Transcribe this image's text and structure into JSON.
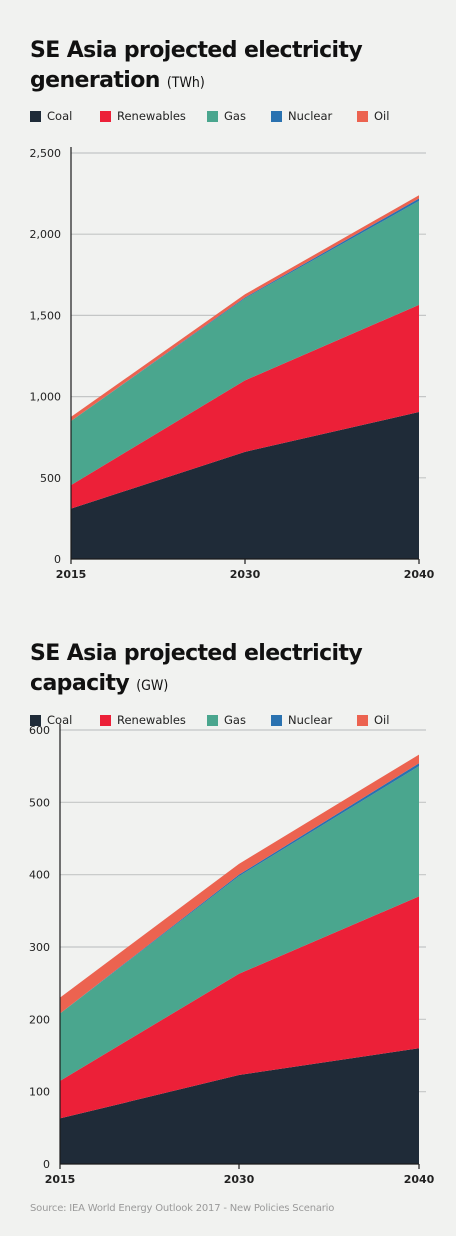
{
  "colors": {
    "coal": "#1f2b38",
    "renewables": "#ec2038",
    "gas": "#4aa68e",
    "nuclear": "#2a72b0",
    "oil": "#ec6350",
    "grid": "#c4c6c6",
    "axis": "#1b1b1b"
  },
  "source": "Source: IEA World Energy Outlook 2017 - New Policies Scenario",
  "chart_data": [
    {
      "type": "area",
      "stacked": true,
      "title": "SE Asia projected electricity generation",
      "unit": "(TWh)",
      "x": [
        "2015",
        "2030",
        "2040"
      ],
      "xlabel": "",
      "ylabel": "",
      "ylim": [
        0,
        2500
      ],
      "yticks": [
        "0",
        "500",
        "1,000",
        "1,500",
        "2,000",
        "2,500"
      ],
      "ytick_values": [
        0,
        500,
        1000,
        1500,
        2000,
        2500
      ],
      "grid": true,
      "legend": "top",
      "series": [
        {
          "name": "Coal",
          "color_key": "coal",
          "values": [
            310,
            660,
            905
          ]
        },
        {
          "name": "Renewables",
          "color_key": "renewables",
          "values": [
            145,
            440,
            660
          ]
        },
        {
          "name": "Gas",
          "color_key": "gas",
          "values": [
            395,
            505,
            640
          ]
        },
        {
          "name": "Nuclear",
          "color_key": "nuclear",
          "values": [
            0,
            5,
            15
          ]
        },
        {
          "name": "Oil",
          "color_key": "oil",
          "values": [
            25,
            20,
            20
          ]
        }
      ]
    },
    {
      "type": "area",
      "stacked": true,
      "title": "SE Asia projected electricity capacity",
      "unit": "(GW)",
      "x": [
        "2015",
        "2030",
        "2040"
      ],
      "xlabel": "",
      "ylabel": "",
      "ylim": [
        0,
        600
      ],
      "yticks": [
        "0",
        "100",
        "200",
        "300",
        "400",
        "500",
        "600"
      ],
      "ytick_values": [
        0,
        100,
        200,
        300,
        400,
        500,
        600
      ],
      "grid": true,
      "legend": "top",
      "series": [
        {
          "name": "Coal",
          "color_key": "coal",
          "values": [
            63,
            123,
            160
          ]
        },
        {
          "name": "Renewables",
          "color_key": "renewables",
          "values": [
            52,
            140,
            210
          ]
        },
        {
          "name": "Gas",
          "color_key": "gas",
          "values": [
            93,
            135,
            180
          ]
        },
        {
          "name": "Nuclear",
          "color_key": "nuclear",
          "values": [
            0,
            2,
            4
          ]
        },
        {
          "name": "Oil",
          "color_key": "oil",
          "values": [
            22,
            15,
            12
          ]
        }
      ]
    }
  ]
}
